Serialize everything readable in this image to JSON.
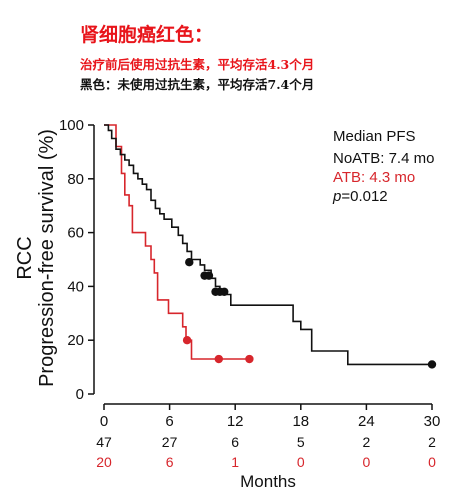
{
  "header": {
    "title": "肾细胞癌红色：",
    "note_red": "治疗前后使用过抗生素，平均存活4.3个月",
    "note_black": "黑色：未使用过抗生素，平均存活7.4个月"
  },
  "colors": {
    "atb": "#d7262c",
    "noatb": "#111111"
  },
  "chart_data": {
    "type": "line",
    "subtype": "kaplan-meier step curve",
    "title": "",
    "xlabel": "Months",
    "ylabel_top": "RCC",
    "ylabel": "Progression-free survival (%)",
    "xlim": [
      0,
      30
    ],
    "ylim": [
      0,
      100
    ],
    "xticks": [
      0,
      6,
      12,
      18,
      24,
      30
    ],
    "yticks": [
      0,
      20,
      40,
      60,
      80,
      100
    ],
    "grid": false,
    "legend": {
      "placement": "top-right",
      "title": "Median PFS",
      "entries": [
        "NoATB: 7.4 mo",
        "ATB: 4.3 mo"
      ],
      "p_label": "p",
      "p_value": "=0.012"
    },
    "series": [
      {
        "name": "NoATB",
        "color": "#111111",
        "steps": [
          [
            0,
            100
          ],
          [
            0.4,
            100
          ],
          [
            0.4,
            98
          ],
          [
            0.7,
            98
          ],
          [
            0.7,
            95
          ],
          [
            1.1,
            95
          ],
          [
            1.1,
            91
          ],
          [
            1.5,
            91
          ],
          [
            1.5,
            89
          ],
          [
            1.9,
            89
          ],
          [
            1.9,
            87
          ],
          [
            2.3,
            87
          ],
          [
            2.3,
            85
          ],
          [
            2.7,
            85
          ],
          [
            2.7,
            82
          ],
          [
            3.1,
            82
          ],
          [
            3.1,
            80
          ],
          [
            3.5,
            80
          ],
          [
            3.5,
            78
          ],
          [
            3.9,
            78
          ],
          [
            3.9,
            76
          ],
          [
            4.3,
            76
          ],
          [
            4.3,
            72
          ],
          [
            4.7,
            72
          ],
          [
            4.7,
            69
          ],
          [
            5.1,
            69
          ],
          [
            5.1,
            67
          ],
          [
            5.5,
            67
          ],
          [
            5.5,
            65
          ],
          [
            6.2,
            65
          ],
          [
            6.2,
            62
          ],
          [
            6.8,
            62
          ],
          [
            6.8,
            59
          ],
          [
            7.2,
            59
          ],
          [
            7.2,
            56
          ],
          [
            7.6,
            56
          ],
          [
            7.6,
            53
          ],
          [
            8.0,
            53
          ],
          [
            8.0,
            50
          ],
          [
            8.8,
            50
          ],
          [
            8.8,
            48
          ],
          [
            9.2,
            48
          ],
          [
            9.2,
            46
          ],
          [
            9.8,
            46
          ],
          [
            9.8,
            43
          ],
          [
            10.2,
            43
          ],
          [
            10.2,
            40
          ],
          [
            10.6,
            40
          ],
          [
            10.6,
            37
          ],
          [
            11.6,
            37
          ],
          [
            11.6,
            33
          ],
          [
            17.3,
            33
          ],
          [
            17.3,
            27
          ],
          [
            18.0,
            27
          ],
          [
            18.0,
            24
          ],
          [
            19.0,
            24
          ],
          [
            19.0,
            16
          ],
          [
            22.3,
            16
          ],
          [
            22.3,
            11
          ],
          [
            30,
            11
          ]
        ],
        "censored": [
          [
            7.8,
            49
          ],
          [
            9.2,
            44
          ],
          [
            9.6,
            44
          ],
          [
            10.2,
            38
          ],
          [
            10.6,
            38
          ],
          [
            11.0,
            38
          ],
          [
            30,
            11
          ]
        ],
        "at_risk": [
          47,
          27,
          6,
          5,
          2,
          2
        ]
      },
      {
        "name": "ATB",
        "color": "#d7262c",
        "steps": [
          [
            0,
            100
          ],
          [
            1.1,
            100
          ],
          [
            1.1,
            92
          ],
          [
            1.6,
            92
          ],
          [
            1.6,
            82
          ],
          [
            1.9,
            82
          ],
          [
            1.9,
            74
          ],
          [
            2.3,
            74
          ],
          [
            2.3,
            70
          ],
          [
            2.6,
            70
          ],
          [
            2.6,
            60
          ],
          [
            3.8,
            60
          ],
          [
            3.8,
            55
          ],
          [
            4.3,
            55
          ],
          [
            4.3,
            50
          ],
          [
            4.6,
            50
          ],
          [
            4.6,
            45
          ],
          [
            4.9,
            45
          ],
          [
            4.9,
            35
          ],
          [
            5.9,
            35
          ],
          [
            5.9,
            30
          ],
          [
            7.2,
            30
          ],
          [
            7.2,
            25
          ],
          [
            7.5,
            25
          ],
          [
            7.5,
            20
          ],
          [
            8.0,
            20
          ],
          [
            8.0,
            13
          ],
          [
            13.3,
            13
          ]
        ],
        "censored": [
          [
            7.6,
            20
          ],
          [
            10.5,
            13
          ],
          [
            13.3,
            13
          ]
        ],
        "at_risk": [
          20,
          6,
          1,
          0,
          0,
          0
        ]
      }
    ]
  }
}
